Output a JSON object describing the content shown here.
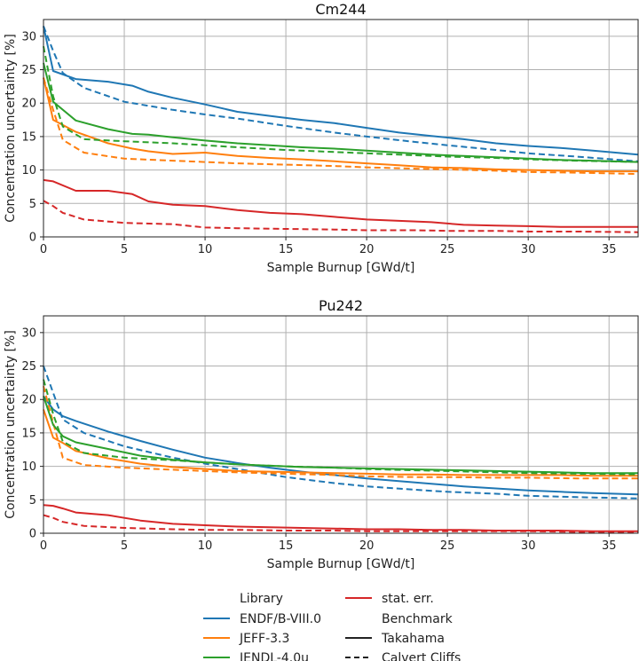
{
  "figure": {
    "legend": {
      "library_header": "Library",
      "benchmark_header": "Benchmark",
      "entries": [
        "ENDF/B-VIII.0",
        "JEFF-3.3",
        "JENDL-4.0u",
        "stat. err."
      ],
      "benchmark_entries": [
        "Takahama",
        "Calvert Cliffs"
      ]
    }
  },
  "chart_data": [
    {
      "type": "line",
      "title": "Cm244",
      "xlabel": "Sample Burnup [GWd/t]",
      "ylabel": "Concentration uncertainty [%]",
      "xlim": [
        0,
        36.8
      ],
      "ylim": [
        0,
        32.5
      ],
      "xticks": [
        0,
        5,
        10,
        15,
        20,
        25,
        30,
        35
      ],
      "yticks": [
        0,
        5,
        10,
        15,
        20,
        25,
        30
      ],
      "grid": true,
      "series": [
        {
          "name": "ENDF/B-VIII.0",
          "benchmark": "Takahama",
          "color": "#1f77b4",
          "style": "solid",
          "x": [
            0,
            0.6,
            2,
            4,
            5.5,
            6.5,
            8,
            10,
            12,
            14,
            16,
            18,
            20,
            22,
            24,
            26,
            28,
            30,
            32,
            34,
            36.8
          ],
          "y": [
            31.5,
            24.8,
            23.6,
            23.2,
            22.6,
            21.7,
            20.8,
            19.8,
            18.7,
            18.1,
            17.5,
            17.0,
            16.3,
            15.6,
            15.1,
            14.6,
            14.0,
            13.6,
            13.3,
            12.9,
            12.3
          ]
        },
        {
          "name": "ENDF/B-VIII.0",
          "benchmark": "Calvert Cliffs",
          "color": "#1f77b4",
          "style": "dashed",
          "x": [
            0,
            0.6,
            1.2,
            2.5,
            5,
            8,
            10,
            12,
            15,
            18,
            20,
            23,
            25,
            28,
            30,
            33,
            36.8
          ],
          "y": [
            31.5,
            27.8,
            24.5,
            22.3,
            20.2,
            19.0,
            18.3,
            17.7,
            16.6,
            15.6,
            15.0,
            14.2,
            13.7,
            13.0,
            12.5,
            12.0,
            11.3
          ]
        },
        {
          "name": "JEFF-3.3",
          "benchmark": "Takahama",
          "color": "#ff7f0e",
          "style": "solid",
          "x": [
            0,
            0.6,
            2,
            4,
            5.5,
            6.5,
            8,
            10,
            12,
            14,
            16,
            18,
            20,
            22,
            24,
            26,
            28,
            30,
            32,
            34,
            36.8
          ],
          "y": [
            23.8,
            17.5,
            15.7,
            14.0,
            13.2,
            12.8,
            12.4,
            12.6,
            12.1,
            11.8,
            11.6,
            11.3,
            11.0,
            10.7,
            10.4,
            10.3,
            10.1,
            10.0,
            9.9,
            9.8,
            9.8
          ]
        },
        {
          "name": "JEFF-3.3",
          "benchmark": "Calvert Cliffs",
          "color": "#ff7f0e",
          "style": "dashed",
          "x": [
            0,
            0.6,
            1.2,
            2.5,
            5,
            8,
            10,
            12,
            15,
            18,
            20,
            23,
            25,
            28,
            30,
            33,
            36.8
          ],
          "y": [
            23.8,
            19.0,
            14.5,
            12.6,
            11.7,
            11.4,
            11.2,
            11.0,
            10.8,
            10.6,
            10.4,
            10.2,
            10.1,
            9.9,
            9.7,
            9.6,
            9.4
          ]
        },
        {
          "name": "JENDL-4.0u",
          "benchmark": "Takahama",
          "color": "#2ca02c",
          "style": "solid",
          "x": [
            0,
            0.6,
            2,
            4,
            5.5,
            6.5,
            8,
            10,
            12,
            14,
            16,
            18,
            20,
            22,
            24,
            26,
            28,
            30,
            32,
            34,
            36.8
          ],
          "y": [
            26.0,
            20.2,
            17.4,
            16.1,
            15.4,
            15.3,
            14.9,
            14.4,
            14.0,
            13.7,
            13.4,
            13.2,
            12.9,
            12.6,
            12.3,
            12.1,
            11.9,
            11.7,
            11.5,
            11.4,
            11.2
          ]
        },
        {
          "name": "JENDL-4.0u",
          "benchmark": "Calvert Cliffs",
          "color": "#2ca02c",
          "style": "dashed",
          "x": [
            0,
            0.6,
            1.2,
            2.5,
            5,
            8,
            10,
            12,
            15,
            18,
            20,
            23,
            25,
            28,
            30,
            33,
            36.8
          ],
          "y": [
            28.5,
            21.0,
            16.5,
            14.6,
            14.3,
            14.0,
            13.7,
            13.4,
            13.0,
            12.7,
            12.5,
            12.2,
            12.0,
            11.8,
            11.6,
            11.4,
            11.2
          ]
        },
        {
          "name": "stat. err.",
          "benchmark": "Takahama",
          "color": "#d62728",
          "style": "solid",
          "x": [
            0,
            0.6,
            2,
            4,
            5.5,
            6.5,
            8,
            10,
            12,
            14,
            16,
            18,
            20,
            22,
            24,
            26,
            28,
            30,
            32,
            34,
            36.8
          ],
          "y": [
            8.5,
            8.3,
            6.9,
            6.9,
            6.4,
            5.3,
            4.8,
            4.6,
            4.0,
            3.6,
            3.4,
            3.0,
            2.6,
            2.4,
            2.2,
            1.8,
            1.7,
            1.6,
            1.5,
            1.5,
            1.5
          ]
        },
        {
          "name": "stat. err.",
          "benchmark": "Calvert Cliffs",
          "color": "#d62728",
          "style": "dashed",
          "x": [
            0,
            0.6,
            1.2,
            2.5,
            5,
            8,
            10,
            12,
            15,
            18,
            20,
            23,
            25,
            28,
            30,
            33,
            36.8
          ],
          "y": [
            5.4,
            4.6,
            3.6,
            2.6,
            2.1,
            1.9,
            1.4,
            1.3,
            1.2,
            1.1,
            1.0,
            1.0,
            0.9,
            0.9,
            0.8,
            0.8,
            0.7
          ]
        }
      ]
    },
    {
      "type": "line",
      "title": "Pu242",
      "xlabel": "Sample Burnup [GWd/t]",
      "ylabel": "Concentration uncertainty [%]",
      "xlim": [
        0,
        36.8
      ],
      "ylim": [
        0,
        32.5
      ],
      "xticks": [
        0,
        5,
        10,
        15,
        20,
        25,
        30,
        35
      ],
      "yticks": [
        0,
        5,
        10,
        15,
        20,
        25,
        30
      ],
      "grid": true,
      "series": [
        {
          "name": "ENDF/B-VIII.0",
          "benchmark": "Takahama",
          "color": "#1f77b4",
          "style": "solid",
          "x": [
            0,
            0.6,
            1.2,
            2,
            4,
            6,
            8,
            10,
            12,
            14,
            16,
            18,
            20,
            22,
            24,
            26,
            28,
            30,
            32,
            34,
            36.8
          ],
          "y": [
            20.5,
            18.5,
            17.5,
            16.8,
            15.2,
            13.8,
            12.5,
            11.3,
            10.5,
            9.8,
            9.2,
            8.7,
            8.2,
            7.8,
            7.4,
            7.0,
            6.7,
            6.4,
            6.2,
            6.0,
            5.8
          ]
        },
        {
          "name": "ENDF/B-VIII.0",
          "benchmark": "Calvert Cliffs",
          "color": "#1f77b4",
          "style": "dashed",
          "x": [
            0,
            0.6,
            1.2,
            2.5,
            5,
            8,
            10,
            12,
            15,
            18,
            20,
            23,
            25,
            28,
            30,
            33,
            36.8
          ],
          "y": [
            25.0,
            21.0,
            17.0,
            15.0,
            13.0,
            11.3,
            10.4,
            9.6,
            8.4,
            7.5,
            7.0,
            6.5,
            6.2,
            5.9,
            5.6,
            5.4,
            5.2
          ]
        },
        {
          "name": "JEFF-3.3",
          "benchmark": "Takahama",
          "color": "#ff7f0e",
          "style": "solid",
          "x": [
            0,
            0.6,
            1.2,
            2,
            4,
            6,
            8,
            10,
            12,
            14,
            16,
            18,
            20,
            22,
            24,
            26,
            28,
            30,
            32,
            34,
            36.8
          ],
          "y": [
            18.5,
            14.3,
            13.5,
            12.3,
            11.2,
            10.4,
            9.9,
            9.6,
            9.3,
            9.2,
            9.1,
            9.0,
            8.9,
            8.8,
            8.8,
            8.7,
            8.7,
            8.7,
            8.7,
            8.6,
            8.6
          ]
        },
        {
          "name": "JEFF-3.3",
          "benchmark": "Calvert Cliffs",
          "color": "#ff7f0e",
          "style": "dashed",
          "x": [
            0,
            0.6,
            1.2,
            2.5,
            5,
            8,
            10,
            12,
            15,
            18,
            20,
            23,
            25,
            28,
            30,
            33,
            36.8
          ],
          "y": [
            22.0,
            16.5,
            11.3,
            10.2,
            9.8,
            9.5,
            9.3,
            9.1,
            8.9,
            8.7,
            8.5,
            8.4,
            8.4,
            8.3,
            8.3,
            8.2,
            8.2
          ]
        },
        {
          "name": "JENDL-4.0u",
          "benchmark": "Takahama",
          "color": "#2ca02c",
          "style": "solid",
          "x": [
            0,
            0.6,
            1.2,
            2,
            4,
            6,
            8,
            10,
            12,
            14,
            16,
            18,
            20,
            22,
            24,
            26,
            28,
            30,
            32,
            34,
            36.8
          ],
          "y": [
            20.5,
            16.2,
            14.5,
            13.6,
            12.6,
            11.6,
            11.0,
            10.6,
            10.3,
            10.1,
            9.9,
            9.8,
            9.7,
            9.6,
            9.5,
            9.4,
            9.3,
            9.2,
            9.1,
            9.0,
            9.0
          ]
        },
        {
          "name": "JENDL-4.0u",
          "benchmark": "Calvert Cliffs",
          "color": "#2ca02c",
          "style": "dashed",
          "x": [
            0,
            0.6,
            1.2,
            2.5,
            5,
            8,
            10,
            12,
            15,
            18,
            20,
            23,
            25,
            28,
            30,
            33,
            36.8
          ],
          "y": [
            23.0,
            17.8,
            13.7,
            12.0,
            11.3,
            10.9,
            10.6,
            10.3,
            10.0,
            9.8,
            9.6,
            9.4,
            9.3,
            9.1,
            9.0,
            8.9,
            8.8
          ]
        },
        {
          "name": "stat. err.",
          "benchmark": "Takahama",
          "color": "#d62728",
          "style": "solid",
          "x": [
            0,
            0.6,
            1.2,
            2,
            4,
            6,
            8,
            10,
            12,
            14,
            16,
            18,
            20,
            22,
            24,
            26,
            28,
            30,
            32,
            34,
            36.8
          ],
          "y": [
            4.2,
            4.1,
            3.7,
            3.1,
            2.7,
            1.9,
            1.4,
            1.2,
            1.0,
            0.9,
            0.8,
            0.7,
            0.6,
            0.6,
            0.5,
            0.5,
            0.4,
            0.4,
            0.4,
            0.3,
            0.3
          ]
        },
        {
          "name": "stat. err.",
          "benchmark": "Calvert Cliffs",
          "color": "#d62728",
          "style": "dashed",
          "x": [
            0,
            0.6,
            1.2,
            2.5,
            5,
            8,
            10,
            12,
            15,
            18,
            20,
            23,
            25,
            28,
            30,
            33,
            36.8
          ],
          "y": [
            2.7,
            2.3,
            1.7,
            1.1,
            0.8,
            0.6,
            0.5,
            0.5,
            0.4,
            0.4,
            0.3,
            0.3,
            0.3,
            0.3,
            0.3,
            0.2,
            0.2
          ]
        }
      ]
    }
  ]
}
